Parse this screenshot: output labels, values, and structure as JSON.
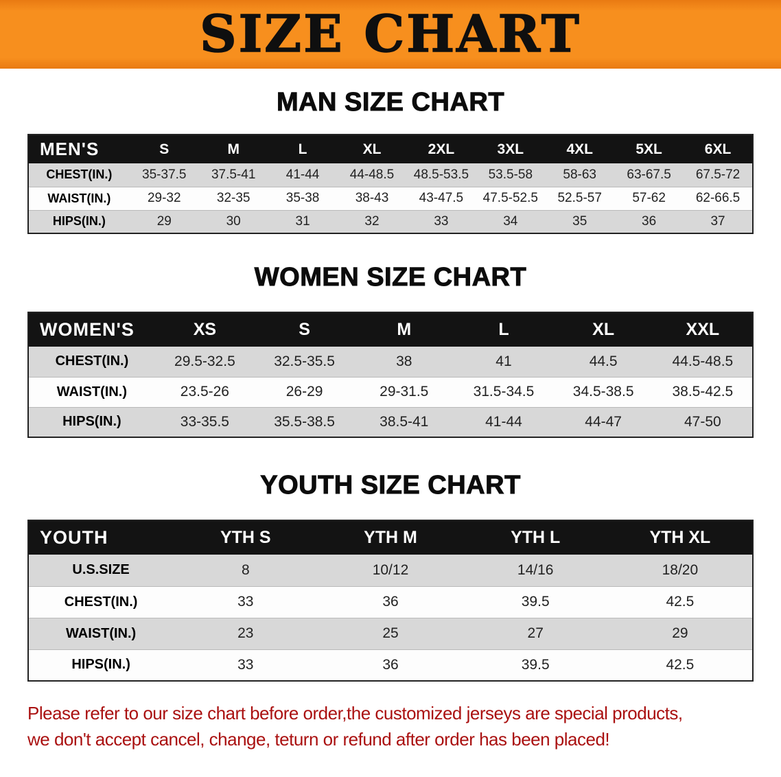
{
  "banner": {
    "title": "SIZE CHART"
  },
  "colors": {
    "banner_bg": "#f78f1e",
    "table_header_bg": "#131313",
    "row_alt_bg": "#d8d8d8",
    "footer_text": "#aa1111"
  },
  "sections": [
    {
      "heading": "MAN SIZE CHART",
      "table": {
        "header": [
          "MEN'S",
          "S",
          "M",
          "L",
          "XL",
          "2XL",
          "3XL",
          "4XL",
          "5XL",
          "6XL"
        ],
        "rows": [
          [
            "CHEST(IN.)",
            "35-37.5",
            "37.5-41",
            "41-44",
            "44-48.5",
            "48.5-53.5",
            "53.5-58",
            "58-63",
            "63-67.5",
            "67.5-72"
          ],
          [
            "WAIST(IN.)",
            "29-32",
            "32-35",
            "35-38",
            "38-43",
            "43-47.5",
            "47.5-52.5",
            "52.5-57",
            "57-62",
            "62-66.5"
          ],
          [
            "HIPS(IN.)",
            "29",
            "30",
            "31",
            "32",
            "33",
            "34",
            "35",
            "36",
            "37"
          ]
        ]
      }
    },
    {
      "heading": "WOMEN SIZE CHART",
      "table": {
        "header": [
          "WOMEN'S",
          "XS",
          "S",
          "M",
          "L",
          "XL",
          "XXL"
        ],
        "rows": [
          [
            "CHEST(IN.)",
            "29.5-32.5",
            "32.5-35.5",
            "38",
            "41",
            "44.5",
            "44.5-48.5"
          ],
          [
            "WAIST(IN.)",
            "23.5-26",
            "26-29",
            "29-31.5",
            "31.5-34.5",
            "34.5-38.5",
            "38.5-42.5"
          ],
          [
            "HIPS(IN.)",
            "33-35.5",
            "35.5-38.5",
            "38.5-41",
            "41-44",
            "44-47",
            "47-50"
          ]
        ]
      }
    },
    {
      "heading": "YOUTH SIZE CHART",
      "table": {
        "header": [
          "YOUTH",
          "YTH S",
          "YTH M",
          "YTH L",
          "YTH XL"
        ],
        "rows": [
          [
            "U.S.SIZE",
            "8",
            "10/12",
            "14/16",
            "18/20"
          ],
          [
            "CHEST(IN.)",
            "33",
            "36",
            "39.5",
            "42.5"
          ],
          [
            "WAIST(IN.)",
            "23",
            "25",
            "27",
            "29"
          ],
          [
            "HIPS(IN.)",
            "33",
            "36",
            "39.5",
            "42.5"
          ]
        ]
      }
    }
  ],
  "footer": {
    "line1": "Please refer to our size chart before order,the customized jerseys are special products,",
    "line2": "we don't accept cancel, change, teturn or refund after order has been placed!"
  }
}
